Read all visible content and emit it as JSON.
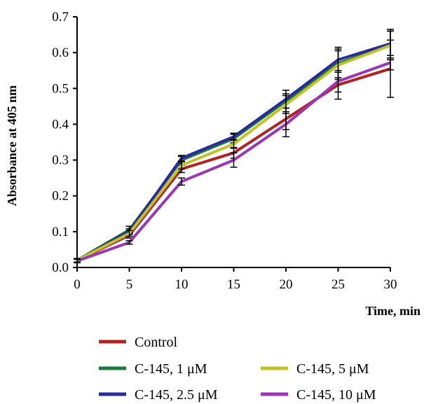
{
  "chart_data": {
    "type": "line",
    "xlabel": "Time, min",
    "ylabel": "Absorbance at 405 nm",
    "x": [
      0,
      5,
      10,
      15,
      20,
      25,
      30
    ],
    "xlim": [
      0,
      30
    ],
    "ylim": [
      0,
      0.7
    ],
    "xticks": [
      "0",
      "5",
      "10",
      "15",
      "20",
      "25",
      "30"
    ],
    "yticks": [
      "0.0",
      "0.1",
      "0.2",
      "0.3",
      "0.4",
      "0.5",
      "0.6",
      "0.7"
    ],
    "grid": false,
    "legend_position": "bottom",
    "series": [
      {
        "name": "Control",
        "color": "#b22222",
        "values": [
          0.02,
          0.09,
          0.275,
          0.32,
          0.415,
          0.51,
          0.555
        ],
        "errors": [
          0.005,
          0.008,
          0.01,
          0.015,
          0.03,
          0.04,
          0.08
        ]
      },
      {
        "name": "C-145, 1 μM",
        "color": "#1a7a3c",
        "values": [
          0.02,
          0.105,
          0.3,
          0.36,
          0.465,
          0.57,
          0.62
        ],
        "errors": [
          0.005,
          0.01,
          0.01,
          0.012,
          0.02,
          0.04,
          0.04
        ]
      },
      {
        "name": "C-145, 2.5 μM",
        "color": "#2a2a9a",
        "values": [
          0.02,
          0.1,
          0.305,
          0.365,
          0.47,
          0.58,
          0.625
        ],
        "errors": [
          0.005,
          0.008,
          0.008,
          0.01,
          0.025,
          0.035,
          0.04
        ]
      },
      {
        "name": "C-145, 5 μM",
        "color": "#c2c228",
        "values": [
          0.02,
          0.095,
          0.285,
          0.345,
          0.455,
          0.565,
          0.62
        ],
        "errors": [
          0.005,
          0.008,
          0.01,
          0.012,
          0.025,
          0.04,
          0.04
        ]
      },
      {
        "name": "C-145, 10 μM",
        "color": "#9a35b5",
        "values": [
          0.018,
          0.07,
          0.24,
          0.3,
          0.4,
          0.52,
          0.572
        ],
        "errors": [
          0.005,
          0.005,
          0.01,
          0.02,
          0.035,
          0.03,
          0.02
        ]
      }
    ]
  }
}
